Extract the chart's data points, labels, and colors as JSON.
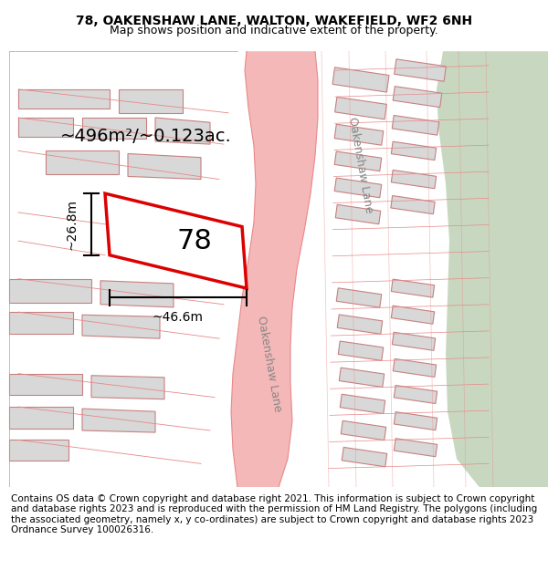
{
  "title": "78, OAKENSHAW LANE, WALTON, WAKEFIELD, WF2 6NH",
  "subtitle": "Map shows position and indicative extent of the property.",
  "footer": "Contains OS data © Crown copyright and database right 2021. This information is subject to Crown copyright and database rights 2023 and is reproduced with the permission of HM Land Registry. The polygons (including the associated geometry, namely x, y co-ordinates) are subject to Crown copyright and database rights 2023 Ordnance Survey 100026316.",
  "area_label": "~496m²/~0.123ac.",
  "width_label": "~46.6m",
  "height_label": "~26.8m",
  "plot_number": "78",
  "bg_color": "#f5f5f5",
  "map_bg": "#ffffff",
  "road_color": "#f5b8b8",
  "road_line_color": "#e87070",
  "plot_fill": "#ffffff",
  "plot_edge": "#dd0000",
  "building_fill": "#d8d8d8",
  "building_edge": "#d08080",
  "green_strip": "#c8d8c0",
  "title_fontsize": 10,
  "subtitle_fontsize": 9,
  "footer_fontsize": 7.5
}
